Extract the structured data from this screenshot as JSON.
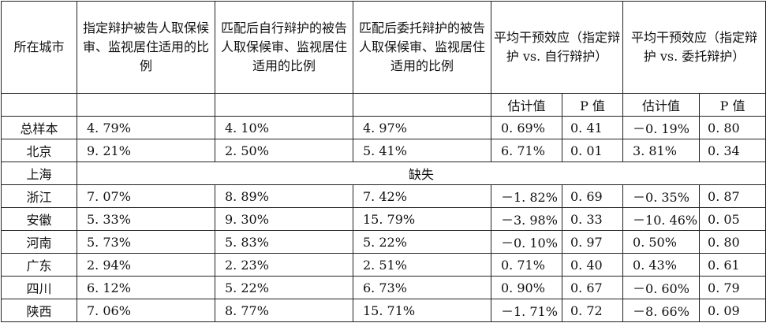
{
  "header": {
    "city": "所在城市",
    "col1": "指定辩护被告人取保候审、监视居住适用的比例",
    "col2": "匹配后自行辩护的被告人取保候审、监视居住适用的比例",
    "col3": "匹配后委托辩护的被告人取保候审、监视居住适用的比例",
    "effect1": "平均干预效应（指定辩护 vs. 自行辩护）",
    "effect2": "平均干预效应（指定辩护 vs. 委托辩护）",
    "estimate": "估计值",
    "pvalue": "P 值"
  },
  "rows": [
    {
      "city": "总样本",
      "v1": "4. 79%",
      "v2": "4. 10%",
      "v3": "4. 97%",
      "e1": "0. 69%",
      "p1": "0. 41",
      "e2": "－0. 19%",
      "p2": "0. 80"
    },
    {
      "city": "北京",
      "v1": "9. 21%",
      "v2": "2. 50%",
      "v3": "5. 41%",
      "e1": "6. 71%",
      "p1": "0. 01",
      "e2": "3. 81%",
      "p2": "0. 34"
    },
    {
      "city": "浙江",
      "v1": "7. 07%",
      "v2": "8. 89%",
      "v3": "7. 42%",
      "e1": "－1. 82%",
      "p1": "0. 69",
      "e2": "－0. 35%",
      "p2": "0. 87"
    },
    {
      "city": "安徽",
      "v1": "5. 33%",
      "v2": "9. 30%",
      "v3": "15. 79%",
      "e1": "－3. 98%",
      "p1": "0. 33",
      "e2": "－10. 46%",
      "p2": "0. 05"
    },
    {
      "city": "河南",
      "v1": "5. 73%",
      "v2": "5. 83%",
      "v3": "5. 22%",
      "e1": "－0. 10%",
      "p1": "0. 97",
      "e2": "0. 50%",
      "p2": "0. 80"
    },
    {
      "city": "广东",
      "v1": "2. 94%",
      "v2": "2. 23%",
      "v3": "2. 51%",
      "e1": "0. 71%",
      "p1": "0. 40",
      "e2": "0. 43%",
      "p2": "0. 61"
    },
    {
      "city": "四川",
      "v1": "6. 12%",
      "v2": "5. 22%",
      "v3": "6. 73%",
      "e1": "0. 90%",
      "p1": "0. 67",
      "e2": "－0. 60%",
      "p2": "0. 79"
    },
    {
      "city": "陕西",
      "v1": "7. 06%",
      "v2": "8. 77%",
      "v3": "15. 71%",
      "e1": "－1. 71%",
      "p1": "0. 72",
      "e2": "－8. 66%",
      "p2": "0. 09"
    }
  ],
  "missing_row": {
    "city": "上海",
    "label": "缺失"
  }
}
